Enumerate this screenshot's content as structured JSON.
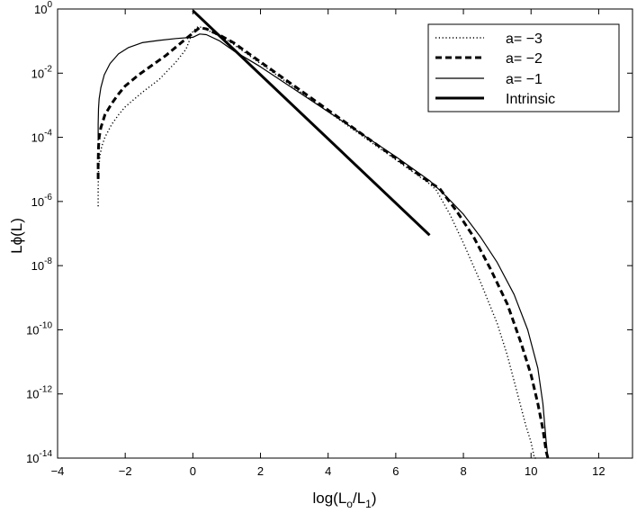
{
  "chart_data": {
    "type": "line",
    "title": "",
    "xlabel": {
      "base": "log(L",
      "sub1": "o",
      "mid": "/L",
      "sub2": "1",
      "end": ")"
    },
    "ylabel": "Lϕ(L)",
    "xlim": [
      -4,
      13
    ],
    "ylim_exponent": [
      -14,
      0
    ],
    "yscale": "log",
    "grid": false,
    "legend_position": "top-right",
    "x_ticks": [
      "−4",
      "−2",
      "0",
      "2",
      "4",
      "6",
      "8",
      "10",
      "12"
    ],
    "y_ticks": [
      {
        "base": "10",
        "exp": "0"
      },
      {
        "base": "10",
        "exp": "-2"
      },
      {
        "base": "10",
        "exp": "-4"
      },
      {
        "base": "10",
        "exp": "-6"
      },
      {
        "base": "10",
        "exp": "-8"
      },
      {
        "base": "10",
        "exp": "-10"
      },
      {
        "base": "10",
        "exp": "-12"
      },
      {
        "base": "10",
        "exp": "-14"
      }
    ],
    "series": [
      {
        "name": "a= −3",
        "style": "dotted",
        "log10_y": true,
        "x": [
          -2.8,
          -2.8,
          -2.79,
          -2.75,
          -2.7,
          -2.6,
          -2.4,
          -2.2,
          -2.0,
          -1.5,
          -1.0,
          -0.5,
          -0.2,
          0.0,
          0.15,
          0.3,
          0.6,
          1.0,
          2.0,
          3.0,
          4.0,
          5.0,
          6.0,
          7.0,
          7.2,
          7.6,
          8.0,
          8.5,
          9.0,
          9.3,
          9.6,
          9.85,
          10.0,
          10.1,
          10.15
        ],
        "y": [
          -6.15,
          -5.6,
          -5.0,
          -4.6,
          -4.3,
          -4.0,
          -3.6,
          -3.3,
          -3.05,
          -2.6,
          -2.2,
          -1.65,
          -1.25,
          -0.7,
          -0.55,
          -0.58,
          -0.75,
          -0.95,
          -1.7,
          -2.45,
          -3.2,
          -3.95,
          -4.7,
          -5.45,
          -5.65,
          -6.4,
          -7.3,
          -8.5,
          -9.8,
          -10.8,
          -12.0,
          -13.0,
          -13.5,
          -14.0,
          -14.0
        ]
      },
      {
        "name": "a= −2",
        "style": "dashed",
        "log10_y": true,
        "x": [
          -2.8,
          -2.8,
          -2.79,
          -2.77,
          -2.72,
          -2.6,
          -2.4,
          -2.2,
          -2.0,
          -1.6,
          -1.2,
          -0.8,
          -0.4,
          0.0,
          0.2,
          0.4,
          0.8,
          1.2,
          2.0,
          3.0,
          4.0,
          5.0,
          6.0,
          7.0,
          7.3,
          7.8,
          8.3,
          8.8,
          9.3,
          9.7,
          10.0,
          10.2,
          10.35,
          10.45,
          10.5
        ],
        "y": [
          -5.3,
          -4.8,
          -4.3,
          -4.0,
          -3.7,
          -3.3,
          -2.95,
          -2.65,
          -2.4,
          -2.05,
          -1.75,
          -1.45,
          -1.1,
          -0.75,
          -0.58,
          -0.62,
          -0.82,
          -1.05,
          -1.65,
          -2.4,
          -3.15,
          -3.9,
          -4.65,
          -5.4,
          -5.6,
          -6.3,
          -7.1,
          -8.1,
          -9.2,
          -10.4,
          -11.4,
          -12.3,
          -13.1,
          -13.8,
          -14.0
        ]
      },
      {
        "name": "a= −1",
        "style": "solid-thin",
        "log10_y": true,
        "x": [
          -2.8,
          -2.8,
          -2.79,
          -2.77,
          -2.72,
          -2.62,
          -2.45,
          -2.2,
          -1.9,
          -1.5,
          -1.0,
          -0.5,
          0.0,
          0.2,
          0.4,
          0.8,
          1.2,
          2.0,
          3.0,
          4.0,
          5.0,
          6.0,
          7.0,
          7.5,
          8.0,
          8.5,
          9.0,
          9.5,
          9.9,
          10.2,
          10.35,
          10.45,
          10.5
        ],
        "y": [
          -4.1,
          -3.6,
          -3.1,
          -2.8,
          -2.45,
          -2.05,
          -1.7,
          -1.4,
          -1.2,
          -1.05,
          -0.98,
          -0.92,
          -0.88,
          -0.78,
          -0.8,
          -1.0,
          -1.3,
          -1.8,
          -2.5,
          -3.2,
          -3.9,
          -4.6,
          -5.35,
          -5.85,
          -6.4,
          -7.1,
          -7.9,
          -8.9,
          -10.0,
          -11.2,
          -12.3,
          -13.5,
          -14.0
        ]
      },
      {
        "name": "Intrinsic",
        "style": "solid-thick",
        "log10_y": true,
        "x": [
          0.0,
          7.0
        ],
        "y": [
          -0.05,
          -7.05
        ]
      }
    ]
  }
}
